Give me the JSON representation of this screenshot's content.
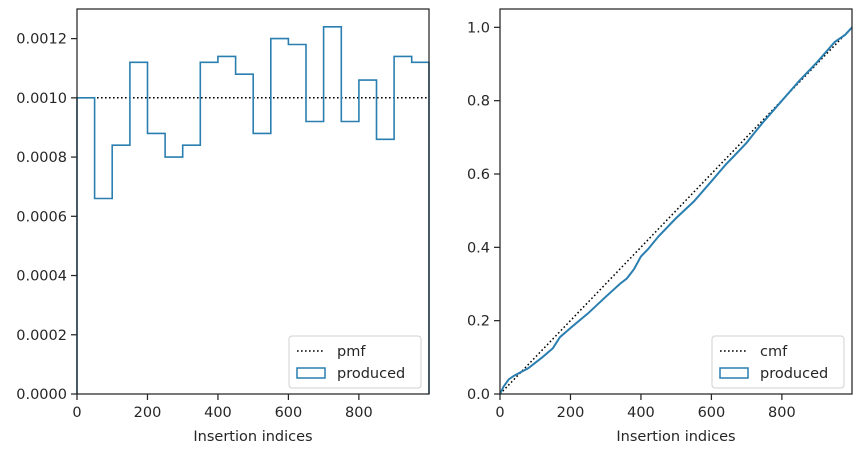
{
  "chart_data": [
    {
      "type": "line",
      "step": true,
      "xlabel": "Insertion indices",
      "ylabel": "",
      "xlim": [
        0,
        999
      ],
      "ylim": [
        0,
        0.0013
      ],
      "xticks": [
        0,
        200,
        400,
        600,
        800
      ],
      "xtick_labels": [
        "0",
        "200",
        "400",
        "600",
        "800"
      ],
      "yticks": [
        0,
        0.0002,
        0.0004,
        0.0006,
        0.0008,
        0.001,
        0.0012
      ],
      "ytick_labels": [
        "0.0000",
        "0.0002",
        "0.0004",
        "0.0006",
        "0.0008",
        "0.0010",
        "0.0012"
      ],
      "legend": {
        "placement": "lower-right",
        "entries": [
          "pmf",
          "produced"
        ]
      },
      "grid": false,
      "series": [
        {
          "name": "pmf",
          "style": "dotted",
          "color": "#000000",
          "x": [
            0,
            999
          ],
          "y": [
            0.001,
            0.001
          ]
        },
        {
          "name": "produced",
          "style": "step-histogram",
          "color": "#2a7fb0",
          "bin_edges": [
            0,
            50,
            100,
            150,
            200,
            250,
            300,
            350,
            400,
            450,
            500,
            550,
            600,
            650,
            700,
            750,
            800,
            850,
            900,
            950,
            999
          ],
          "values": [
            0.001,
            0.00066,
            0.00084,
            0.00112,
            0.00088,
            0.0008,
            0.00084,
            0.00112,
            0.00114,
            0.00108,
            0.00088,
            0.0012,
            0.00118,
            0.00092,
            0.00124,
            0.00092,
            0.00106,
            0.00086,
            0.00114,
            0.00112
          ]
        }
      ]
    },
    {
      "type": "line",
      "step": true,
      "xlabel": "Insertion indices",
      "ylabel": "",
      "xlim": [
        0,
        999
      ],
      "ylim": [
        0,
        1.05
      ],
      "xticks": [
        0,
        200,
        400,
        600,
        800
      ],
      "xtick_labels": [
        "0",
        "200",
        "400",
        "600",
        "800"
      ],
      "yticks": [
        0,
        0.2,
        0.4,
        0.6,
        0.8,
        1.0
      ],
      "ytick_labels": [
        "0.0",
        "0.2",
        "0.4",
        "0.6",
        "0.8",
        "1.0"
      ],
      "legend": {
        "placement": "lower-right",
        "entries": [
          "cmf",
          "produced"
        ]
      },
      "grid": false,
      "series": [
        {
          "name": "cmf",
          "style": "dotted",
          "color": "#000000",
          "x": [
            0,
            999
          ],
          "y": [
            0,
            1.0
          ]
        },
        {
          "name": "produced",
          "style": "solid",
          "color": "#2a7fb0",
          "x": [
            0,
            10,
            25,
            40,
            60,
            80,
            100,
            120,
            150,
            170,
            200,
            250,
            300,
            340,
            360,
            380,
            400,
            420,
            450,
            500,
            550,
            600,
            640,
            660,
            700,
            720,
            750,
            800,
            850,
            900,
            950,
            980,
            999
          ],
          "y": [
            0,
            0.02,
            0.04,
            0.05,
            0.06,
            0.07,
            0.085,
            0.1,
            0.125,
            0.155,
            0.18,
            0.22,
            0.265,
            0.3,
            0.315,
            0.34,
            0.375,
            0.395,
            0.43,
            0.48,
            0.525,
            0.58,
            0.625,
            0.645,
            0.685,
            0.71,
            0.745,
            0.8,
            0.855,
            0.905,
            0.96,
            0.98,
            1.0
          ]
        }
      ]
    }
  ]
}
